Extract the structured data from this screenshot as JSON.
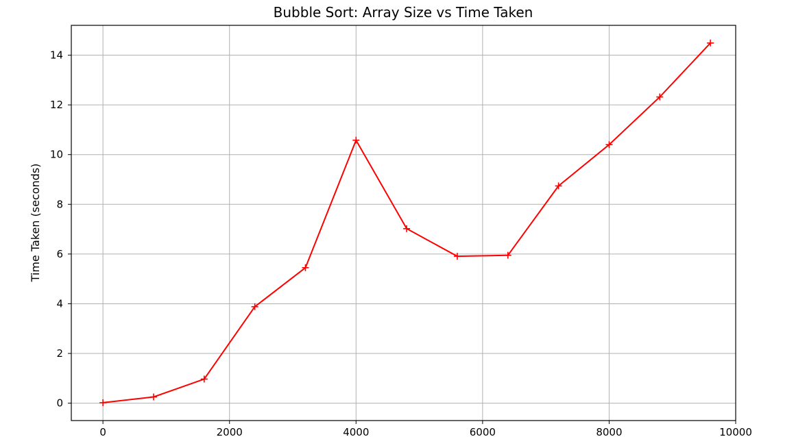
{
  "chart_data": {
    "type": "line",
    "title": "Bubble Sort: Array Size vs Time Taken",
    "xlabel": "",
    "ylabel": "Time Taken (seconds)",
    "xlim": [
      -500,
      10000
    ],
    "ylim": [
      -0.7,
      15.2
    ],
    "xticks": [
      0,
      2000,
      4000,
      6000,
      8000,
      10000
    ],
    "yticks": [
      0,
      2,
      4,
      6,
      8,
      10,
      12,
      14
    ],
    "grid": true,
    "legend": "none",
    "series": [
      {
        "color": "#ff0000",
        "marker": "plus",
        "x": [
          0,
          800,
          1600,
          2400,
          3200,
          4000,
          4800,
          5600,
          6400,
          7200,
          8000,
          8800,
          9600
        ],
        "y": [
          0.02,
          0.25,
          0.97,
          3.88,
          5.45,
          10.58,
          7.02,
          5.91,
          5.95,
          8.74,
          10.4,
          12.32,
          14.49
        ]
      }
    ]
  }
}
